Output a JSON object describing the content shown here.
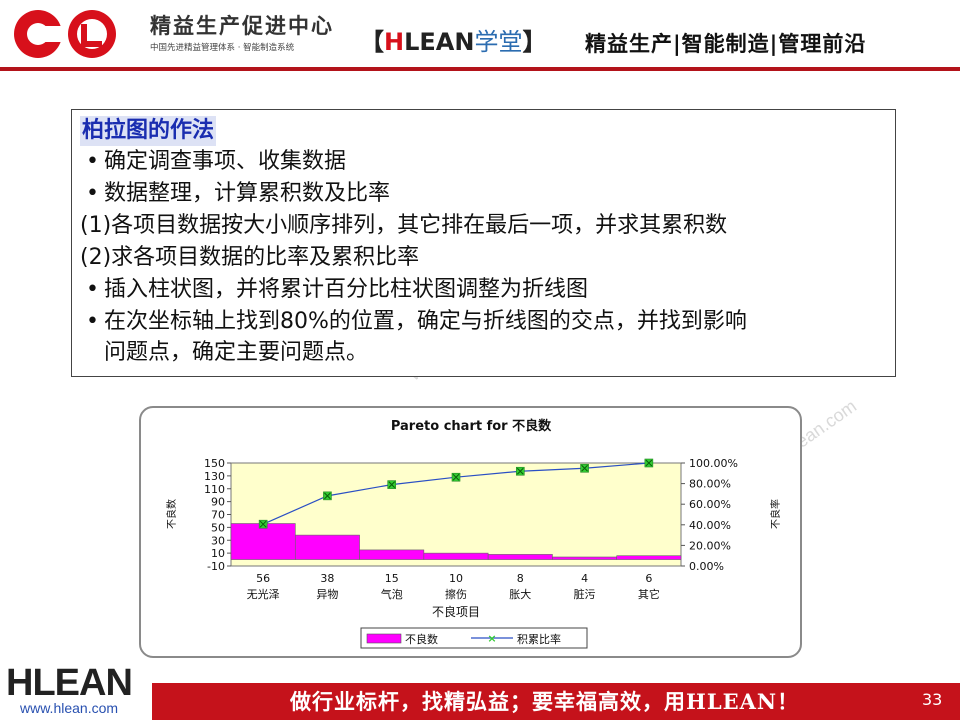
{
  "header": {
    "center_name": "精益生产促进中心",
    "center_sub": "中国先进精益管理体系 · 智能制造系统",
    "brand_bracket_left": "【",
    "brand_h": "H",
    "brand_lean": "LEAN",
    "brand_school": "学堂",
    "brand_bracket_right": "】",
    "slogan": "精益生产|智能制造|管理前沿",
    "accent_color": "#b3131a"
  },
  "content": {
    "title": "柏拉图的作法",
    "lines": [
      "确定调查事项、收集数据",
      "数据整理，计算累积数及比率",
      "(1)各项目数据按大小顺序排列，其它排在最后一项，并求其累积数",
      "(2)求各项目数据的比率及累积比率",
      "插入柱状图，并将累计百分比柱状图调整为折线图",
      "在次坐标轴上找到80%的位置，确定与折线图的交点，并找到影响",
      "问题点，确定主要问题点。"
    ]
  },
  "chart_data": {
    "type": "bar",
    "title": "Pareto chart for 不良数",
    "xlabel": "不良项目",
    "ylabel": "不良数",
    "y2label": "不良率",
    "categories": [
      "无光泽",
      "异物",
      "气泡",
      "擦伤",
      "胀大",
      "脏污",
      "其它"
    ],
    "value_labels": [
      "56",
      "38",
      "15",
      "10",
      "8",
      "4",
      "6"
    ],
    "ylim": [
      -10,
      150
    ],
    "yticks": [
      "150",
      "130",
      "110",
      "90",
      "70",
      "50",
      "30",
      "10",
      "-10"
    ],
    "y2lim": [
      0,
      100
    ],
    "y2ticks": [
      "100.00%",
      "80.00%",
      "60.00%",
      "40.00%",
      "20.00%",
      "0.00%"
    ],
    "series": [
      {
        "name": "不良数",
        "type": "bar",
        "values": [
          56,
          38,
          15,
          10,
          8,
          4,
          6
        ],
        "color": "#ff00ff"
      },
      {
        "name": "积累比率",
        "type": "line",
        "axis": "secondary",
        "values": [
          40.6,
          68.1,
          79.0,
          86.2,
          92.0,
          94.9,
          100.0
        ],
        "color": "#2a4fc4",
        "marker_color": "#33cc33"
      }
    ],
    "plot_background": "#ffffcc",
    "legend_position": "bottom"
  },
  "footer": {
    "slogan": "做行业标杆，找精弘益；要幸福高效，用HLEAN！",
    "page_number": "33",
    "logo_text": "HLEAN",
    "url": "www.hlean.com",
    "bar_color": "#c5121b"
  }
}
